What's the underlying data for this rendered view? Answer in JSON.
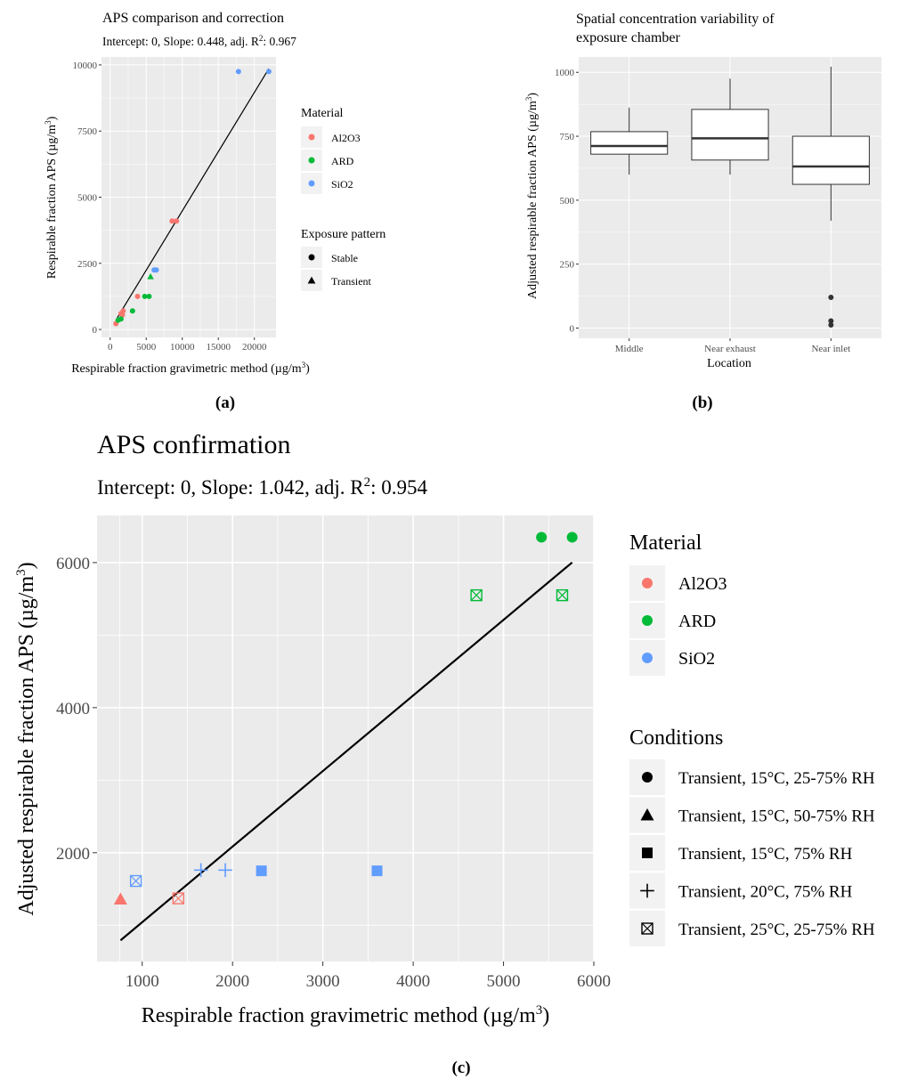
{
  "colors": {
    "Al2O3": "#F8766D",
    "ARD": "#00BA38",
    "SiO2": "#619CFF",
    "panel_bg": "#EBEBEB",
    "grid": "#FFFFFF"
  },
  "chart_data": [
    {
      "id": "a",
      "type": "scatter",
      "title": "APS comparison and correction",
      "subtitle_prefix": "Intercept: 0, Slope: 0.448, adj. R",
      "subtitle_suffix": ": 0.967",
      "xlabel_prefix": "Respirable fraction gravimetric method (µg/m",
      "xlabel_suffix": ")",
      "ylabel_prefix": "Respirable fraction APS (µg/m",
      "ylabel_suffix": ")",
      "xlim": [
        -1200,
        23000
      ],
      "ylim": [
        -300,
        10300
      ],
      "xticks": [
        0,
        5000,
        10000,
        15000,
        20000
      ],
      "xtick_labels": [
        "0",
        "5000",
        "10000",
        "15000",
        "20000"
      ],
      "yticks": [
        0,
        2500,
        5000,
        7500,
        10000
      ],
      "ytick_labels": [
        "0",
        "2500",
        "5000",
        "7500",
        "10000"
      ],
      "fit_line": {
        "slope": 0.448,
        "intercept": 0,
        "x_from": 1000,
        "x_to": 22000
      },
      "legend_material": {
        "title": "Material",
        "items": [
          "Al2O3",
          "ARD",
          "SiO2"
        ]
      },
      "legend_pattern": {
        "title": "Exposure pattern",
        "items": [
          {
            "label": "Stable",
            "shape": "circle"
          },
          {
            "label": "Transient",
            "shape": "triangle"
          }
        ]
      },
      "points": [
        {
          "x": 22000,
          "y": 9750,
          "material": "SiO2",
          "shape": "circle"
        },
        {
          "x": 17800,
          "y": 9750,
          "material": "SiO2",
          "shape": "circle"
        },
        {
          "x": 6400,
          "y": 2250,
          "material": "SiO2",
          "shape": "circle"
        },
        {
          "x": 6100,
          "y": 2250,
          "material": "SiO2",
          "shape": "circle"
        },
        {
          "x": 9200,
          "y": 4100,
          "material": "Al2O3",
          "shape": "circle"
        },
        {
          "x": 8600,
          "y": 4100,
          "material": "Al2O3",
          "shape": "circle"
        },
        {
          "x": 3800,
          "y": 1250,
          "material": "Al2O3",
          "shape": "circle"
        },
        {
          "x": 1800,
          "y": 700,
          "material": "Al2O3",
          "shape": "circle"
        },
        {
          "x": 1700,
          "y": 550,
          "material": "Al2O3",
          "shape": "circle"
        },
        {
          "x": 1500,
          "y": 600,
          "material": "Al2O3",
          "shape": "circle"
        },
        {
          "x": 800,
          "y": 220,
          "material": "Al2O3",
          "shape": "circle"
        },
        {
          "x": 5600,
          "y": 2000,
          "material": "ARD",
          "shape": "triangle"
        },
        {
          "x": 5400,
          "y": 1250,
          "material": "ARD",
          "shape": "circle"
        },
        {
          "x": 4800,
          "y": 1250,
          "material": "ARD",
          "shape": "circle"
        },
        {
          "x": 3100,
          "y": 700,
          "material": "ARD",
          "shape": "circle"
        },
        {
          "x": 1500,
          "y": 400,
          "material": "ARD",
          "shape": "circle"
        },
        {
          "x": 1100,
          "y": 350,
          "material": "ARD",
          "shape": "circle"
        }
      ]
    },
    {
      "id": "b",
      "type": "box",
      "title_lines": [
        "Spatial concentration variability of",
        "exposure chamber"
      ],
      "xlabel": "Location",
      "ylabel_prefix": "Adjusted respirable fraction APS (µg/m",
      "ylabel_suffix": ")",
      "ylim": [
        -40,
        1060
      ],
      "yticks": [
        0,
        250,
        500,
        750,
        1000
      ],
      "ytick_labels": [
        "0",
        "250",
        "500",
        "750",
        "1000"
      ],
      "categories": [
        "Middle",
        "Near exhaust",
        "Near inlet"
      ],
      "boxes": [
        {
          "category": "Middle",
          "min": 600,
          "q1": 680,
          "median": 712,
          "q3": 768,
          "max": 862,
          "outliers": []
        },
        {
          "category": "Near exhaust",
          "min": 600,
          "q1": 657,
          "median": 742,
          "q3": 855,
          "max": 975,
          "outliers": []
        },
        {
          "category": "Near inlet",
          "min": 420,
          "q1": 562,
          "median": 632,
          "q3": 750,
          "max": 1022,
          "outliers": [
            120,
            28,
            12
          ]
        }
      ]
    },
    {
      "id": "c",
      "type": "scatter",
      "title": "APS confirmation",
      "subtitle_prefix": "Intercept: 0, Slope: 1.042, adj. R",
      "subtitle_suffix": ": 0.954",
      "xlabel_prefix": "Respirable fraction gravimetric method (µg/m",
      "xlabel_suffix": ")",
      "ylabel_prefix": "Adjusted respirable fraction APS (µg/m",
      "ylabel_suffix": ")",
      "xlim": [
        500,
        6000
      ],
      "ylim": [
        500,
        6650
      ],
      "xticks": [
        1000,
        2000,
        3000,
        4000,
        5000,
        6000
      ],
      "xtick_labels": [
        "1000",
        "2000",
        "3000",
        "4000",
        "5000",
        "6000"
      ],
      "yticks": [
        2000,
        4000,
        6000
      ],
      "ytick_labels": [
        "2000",
        "4000",
        "6000"
      ],
      "fit_line": {
        "slope": 1.042,
        "intercept": 0,
        "x_from": 760,
        "x_to": 5760
      },
      "legend_material": {
        "title": "Material",
        "items": [
          "Al2O3",
          "ARD",
          "SiO2"
        ]
      },
      "legend_conditions": {
        "title": "Conditions",
        "items": [
          {
            "label": "Transient, 15°C, 25-75% RH",
            "shape": "circle"
          },
          {
            "label": "Transient, 15°C, 50-75% RH",
            "shape": "triangle"
          },
          {
            "label": "Transient, 15°C, 75% RH",
            "shape": "square"
          },
          {
            "label": "Transient, 20°C, 75% RH",
            "shape": "plus"
          },
          {
            "label": "Transient, 25°C, 25-75% RH",
            "shape": "boxx"
          }
        ]
      },
      "points": [
        {
          "x": 5420,
          "y": 6350,
          "material": "ARD",
          "shape": "circle"
        },
        {
          "x": 5760,
          "y": 6350,
          "material": "ARD",
          "shape": "circle"
        },
        {
          "x": 4700,
          "y": 5550,
          "material": "ARD",
          "shape": "boxx"
        },
        {
          "x": 5650,
          "y": 5550,
          "material": "ARD",
          "shape": "boxx"
        },
        {
          "x": 760,
          "y": 1360,
          "material": "Al2O3",
          "shape": "triangle"
        },
        {
          "x": 1400,
          "y": 1370,
          "material": "Al2O3",
          "shape": "boxx"
        },
        {
          "x": 930,
          "y": 1610,
          "material": "SiO2",
          "shape": "boxx"
        },
        {
          "x": 1650,
          "y": 1760,
          "material": "SiO2",
          "shape": "plus"
        },
        {
          "x": 1920,
          "y": 1760,
          "material": "SiO2",
          "shape": "plus"
        },
        {
          "x": 2320,
          "y": 1750,
          "material": "SiO2",
          "shape": "square"
        },
        {
          "x": 3600,
          "y": 1750,
          "material": "SiO2",
          "shape": "square"
        }
      ]
    }
  ],
  "panel_labels": [
    "(a)",
    "(b)",
    "(c)"
  ]
}
